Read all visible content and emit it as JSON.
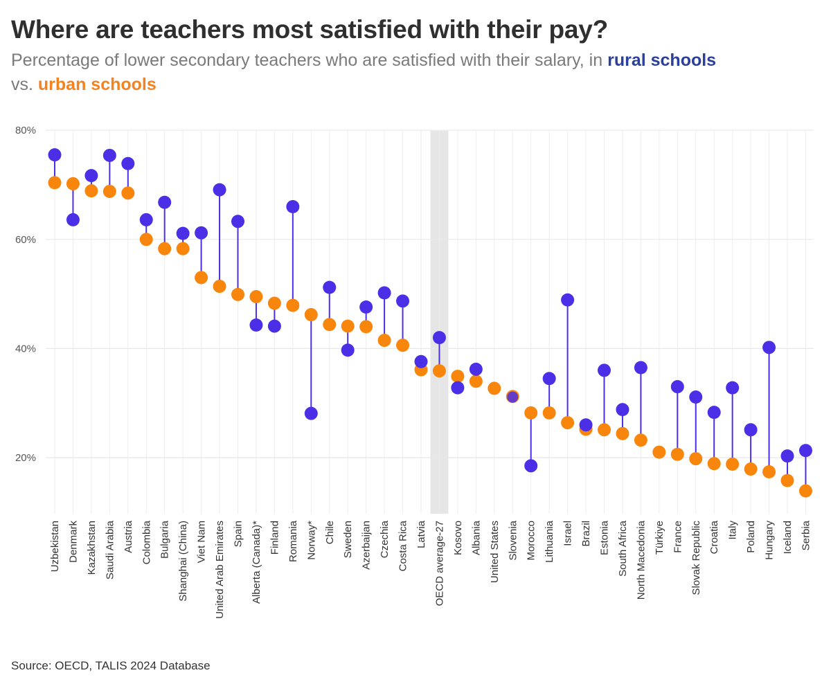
{
  "header": {
    "title": "Where are teachers most satisfied with their pay?",
    "subtitle_prefix": "Percentage of lower secondary teachers who are satisfied with their salary, in",
    "subtitle_rural": "rural schools",
    "subtitle_vs": "vs.",
    "subtitle_urban": "urban schools"
  },
  "footer": {
    "source": "Source: OECD, TALIS 2024 Database"
  },
  "colors": {
    "rural": "#4a2fe6",
    "urban": "#f8860d",
    "connector": "#4a2fe6",
    "highlight": "#e6e6e6",
    "grid": "#e8e8e8"
  },
  "chart_data": {
    "type": "dumbbell",
    "ylim": [
      10,
      80
    ],
    "yticks": [
      20,
      40,
      60,
      80
    ],
    "ytick_labels": [
      "20%",
      "40%",
      "60%",
      "80%"
    ],
    "highlight_category": "OECD average-27",
    "categories": [
      "Uzbekistan",
      "Denmark",
      "Kazakhstan",
      "Saudi Arabia",
      "Austria",
      "Colombia",
      "Bulgaria",
      "Shanghai (China)",
      "Viet Nam",
      "United Arab Emirates",
      "Spain",
      "Alberta (Canada)*",
      "Finland",
      "Romania",
      "Norway*",
      "Chile",
      "Sweden",
      "Azerbaijan",
      "Czechia",
      "Costa Rica",
      "Latvia",
      "OECD average-27",
      "Kosovo",
      "Albania",
      "United States",
      "Slovenia",
      "Morocco",
      "Lithuania",
      "Israel",
      "Brazil",
      "Estonia",
      "South Africa",
      "North Macedonia",
      "Türkiye",
      "France",
      "Slovak Republic",
      "Croatia",
      "Italy",
      "Poland",
      "Hungary",
      "Iceland",
      "Serbia"
    ],
    "series": [
      {
        "name": "rural schools",
        "values": [
          75.5,
          63.6,
          71.7,
          75.4,
          73.9,
          63.6,
          66.8,
          61.1,
          61.2,
          69.1,
          63.3,
          44.3,
          44.1,
          66.0,
          28.1,
          51.2,
          39.7,
          47.6,
          50.2,
          48.7,
          37.6,
          42.0,
          32.8,
          36.2,
          null,
          31.1,
          18.5,
          34.5,
          48.9,
          26.0,
          36.0,
          28.8,
          36.5,
          null,
          33.0,
          31.1,
          28.3,
          32.8,
          25.1,
          40.2,
          20.3,
          21.3
        ]
      },
      {
        "name": "urban schools",
        "values": [
          70.4,
          70.2,
          68.9,
          68.8,
          68.5,
          60.0,
          58.3,
          58.3,
          53.0,
          51.4,
          49.9,
          49.5,
          48.3,
          47.9,
          46.2,
          44.4,
          44.1,
          44.0,
          41.5,
          40.6,
          36.1,
          35.9,
          34.9,
          34.0,
          32.7,
          31.2,
          28.2,
          28.2,
          26.4,
          25.2,
          25.1,
          24.4,
          23.2,
          21.0,
          20.6,
          19.8,
          18.9,
          18.8,
          17.9,
          17.4,
          15.8,
          13.9
        ]
      }
    ]
  }
}
